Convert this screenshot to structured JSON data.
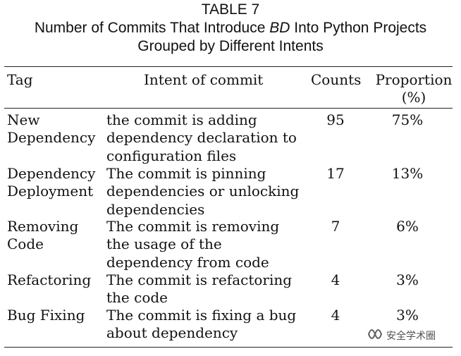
{
  "caption": {
    "label": "TABLE 7",
    "title_before": "Number of Commits That Introduce ",
    "title_em": "BD",
    "title_after": " Into Python Projects",
    "title_line2": "Grouped by Different Intents"
  },
  "table": {
    "headers": {
      "tag": "Tag",
      "intent": "Intent of commit",
      "counts": "Counts",
      "proportion_line1": "Proportion",
      "proportion_line2": "(%)"
    },
    "rows": [
      {
        "tag_lines": [
          "New",
          "Dependency"
        ],
        "intent_lines": [
          "the commit is adding",
          "dependency declaration to",
          "configuration files"
        ],
        "count": "95",
        "proportion": "75%"
      },
      {
        "tag_lines": [
          "Dependency",
          "Deployment"
        ],
        "intent_lines": [
          "The commit is pinning",
          "dependencies or unlocking",
          "dependencies"
        ],
        "count": "17",
        "proportion": "13%"
      },
      {
        "tag_lines": [
          "Removing",
          "Code"
        ],
        "intent_lines": [
          "The commit is removing",
          "the usage of the",
          "dependency from code"
        ],
        "count": "7",
        "proportion": "6%"
      },
      {
        "tag_lines": [
          "Refactoring"
        ],
        "intent_lines": [
          "The commit is refactoring",
          "the code"
        ],
        "count": "4",
        "proportion": "3%"
      },
      {
        "tag_lines": [
          "Bug Fixing"
        ],
        "intent_lines": [
          "The commit is fixing a bug",
          "about dependency"
        ],
        "count": "4",
        "proportion": "3%"
      }
    ]
  },
  "watermark": {
    "text": "安全学术圈",
    "icon": "wechat-channel-icon"
  }
}
